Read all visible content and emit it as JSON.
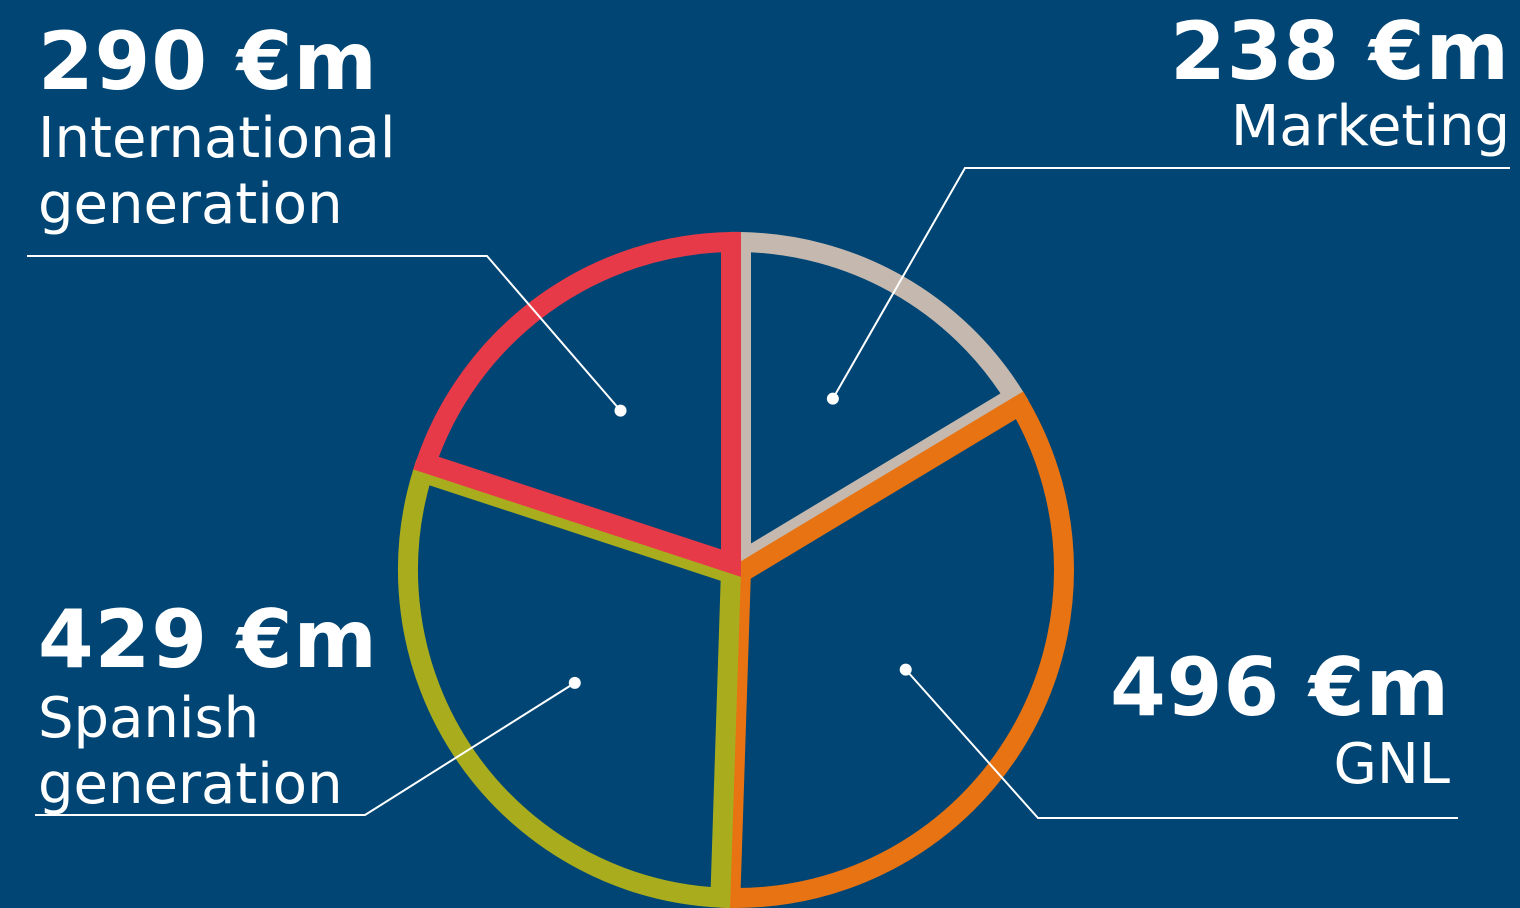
{
  "chart_data": {
    "type": "pie",
    "unit": "€m",
    "colors": {
      "background": "#004574",
      "leader_line": "#ffffff"
    },
    "slices": [
      {
        "key": "marketing",
        "label": "Marketing",
        "value": 238,
        "display": "238 €m",
        "color": "#c5b8ae"
      },
      {
        "key": "gnl",
        "label": "GNL",
        "value": 496,
        "display": "496 €m",
        "color": "#e77313"
      },
      {
        "key": "spanish",
        "label_lines": [
          "Spanish",
          "generation"
        ],
        "value": 429,
        "display": "429 €m",
        "color": "#a9ad1d"
      },
      {
        "key": "international",
        "label_lines": [
          "International",
          "generation"
        ],
        "value": 290,
        "display": "290 €m",
        "color": "#e73a49"
      }
    ]
  }
}
